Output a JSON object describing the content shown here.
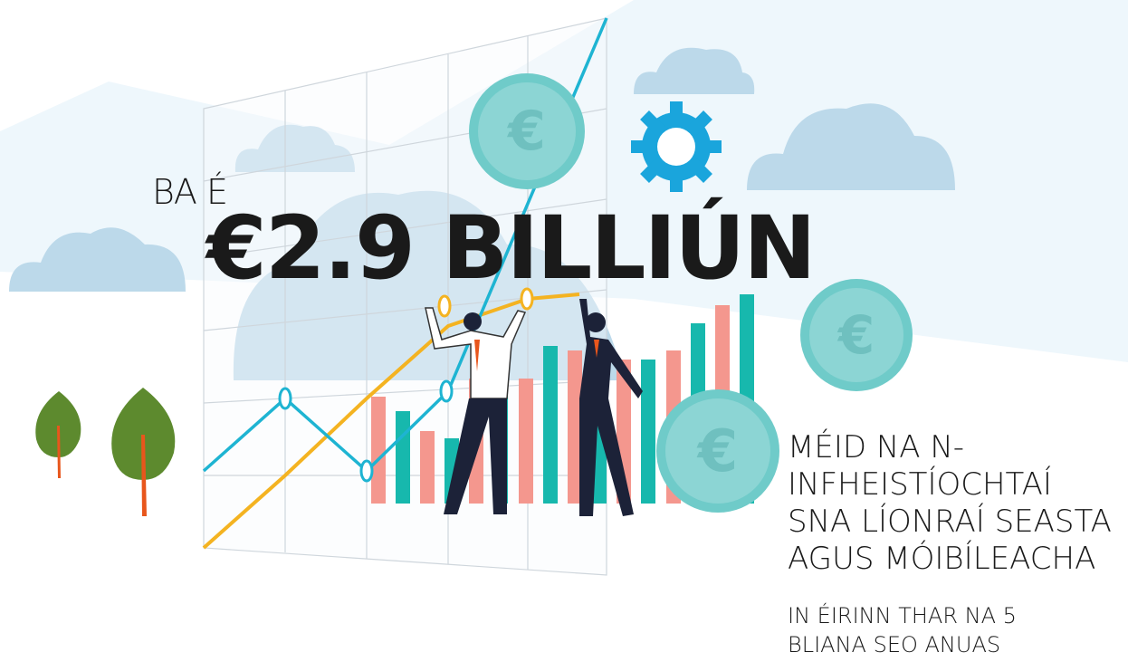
{
  "headline": {
    "lead": "BA É",
    "amount": "€2.9 BILLIÚN"
  },
  "description": "MÉID NA N-INFHEISTÍOCHTAÍ SNA LÍONRAÍ SEASTA AGUS MÓIBÍLEACHA",
  "subtext": "IN ÉIRINN THAR NA 5 BLIANA SEO ANUAS"
}
